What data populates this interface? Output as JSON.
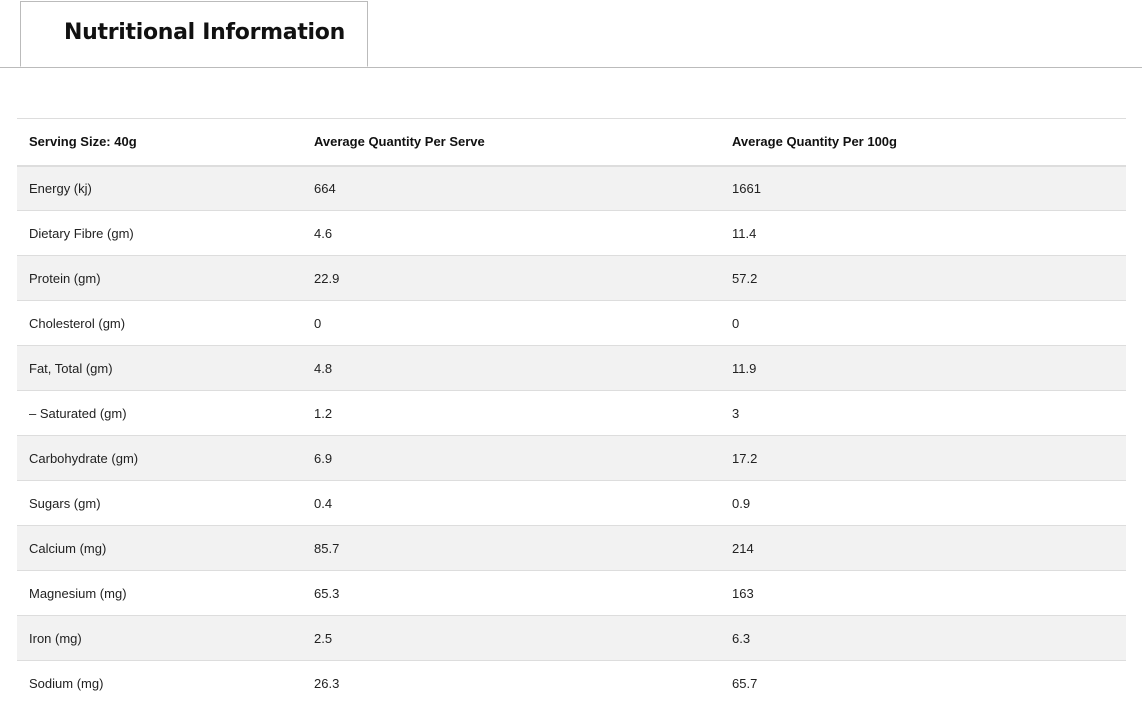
{
  "tab": {
    "title": "Nutritional Information"
  },
  "table": {
    "header": [
      "Serving Size: 40g",
      "Average Quantity Per Serve",
      "Average Quantity Per 100g"
    ],
    "rows": [
      [
        "Energy (kj)",
        "664",
        "1661"
      ],
      [
        "Dietary Fibre (gm)",
        "4.6",
        "11.4"
      ],
      [
        "Protein (gm)",
        "22.9",
        "57.2"
      ],
      [
        "Cholesterol (gm)",
        "0",
        "0"
      ],
      [
        "Fat, Total (gm)",
        "4.8",
        "11.9"
      ],
      [
        "– Saturated (gm)",
        "1.2",
        "3"
      ],
      [
        "Carbohydrate (gm)",
        "6.9",
        "17.2"
      ],
      [
        "Sugars (gm)",
        "0.4",
        "0.9"
      ],
      [
        "Calcium (mg)",
        "85.7",
        "214"
      ],
      [
        "Magnesium (mg)",
        "65.3",
        "163"
      ],
      [
        "Iron (mg)",
        "2.5",
        "6.3"
      ],
      [
        "Sodium (mg)",
        "26.3",
        "65.7"
      ]
    ]
  }
}
